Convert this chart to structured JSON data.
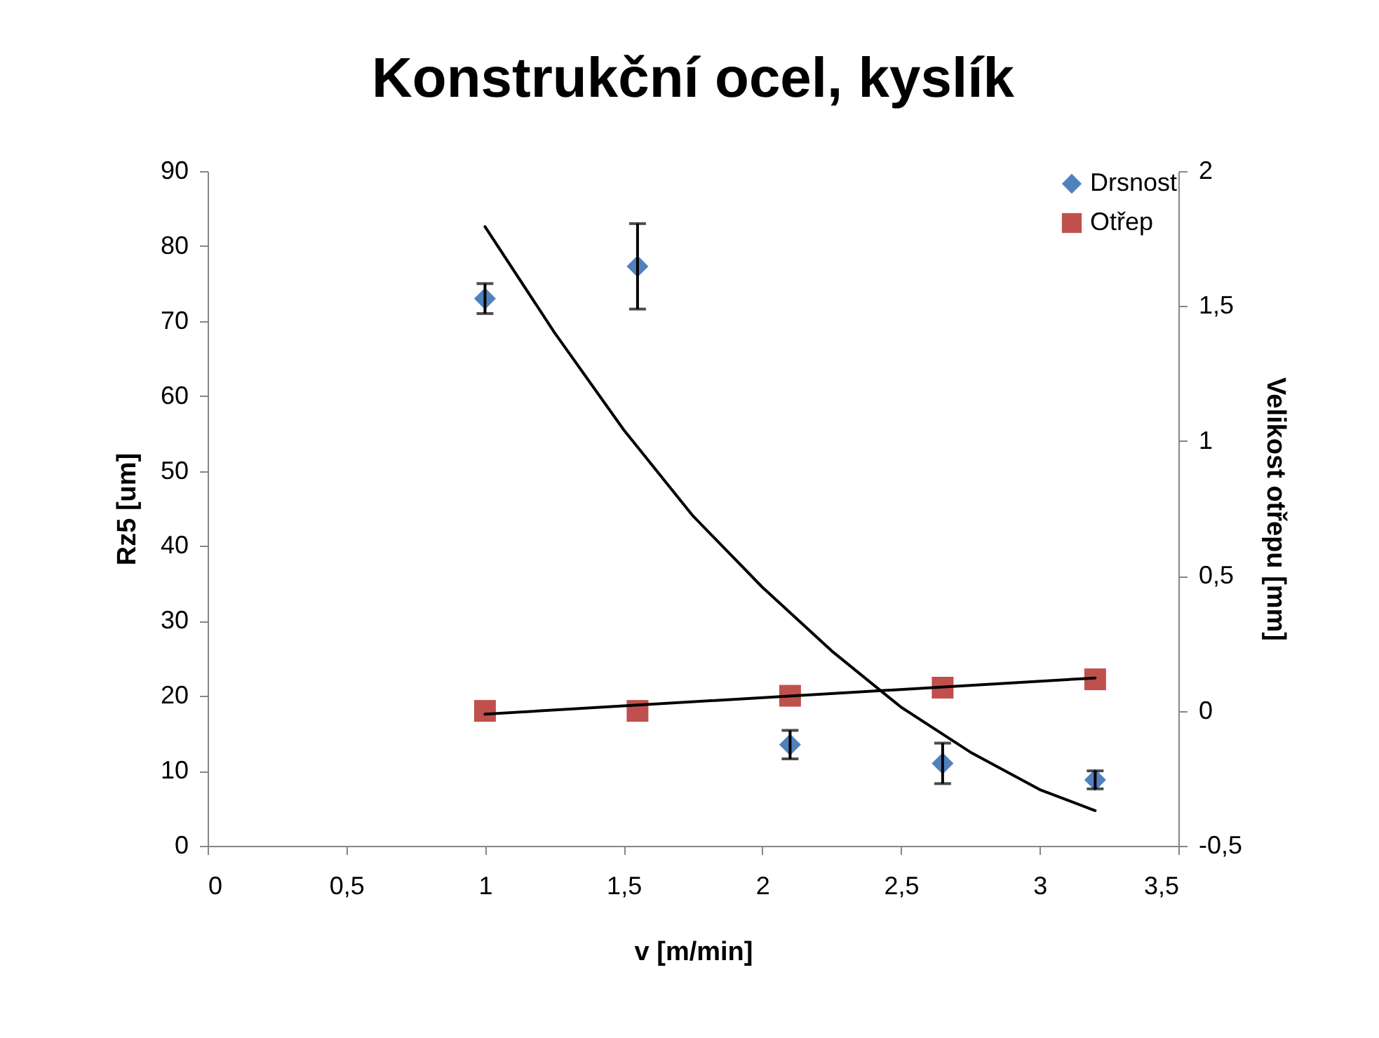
{
  "chart_data": {
    "type": "scatter",
    "title": "Konstrukční ocel, kyslík",
    "xlabel": "v [m/min]",
    "ylabel": "Rz5 [um]",
    "y2label": "Velikost otřepu [mm]",
    "xlim": [
      0,
      3.5
    ],
    "xticks": [
      0,
      {
        "value": 0.5,
        "label": "0,5"
      },
      1,
      {
        "value": 1.5,
        "label": "1,5"
      },
      2,
      {
        "value": 2.5,
        "label": "2,5"
      },
      3,
      {
        "value": 3.5,
        "label": "3,5"
      }
    ],
    "ylim": [
      0,
      90
    ],
    "yticks": [
      0,
      10,
      20,
      30,
      40,
      50,
      60,
      70,
      80,
      90
    ],
    "y2lim": [
      -0.5,
      2
    ],
    "y2ticks": [
      {
        "value": -0.5,
        "label": "-0,5"
      },
      0,
      {
        "value": 0.5,
        "label": "0,5"
      },
      1,
      {
        "value": 1.5,
        "label": "1,5"
      },
      2
    ],
    "grid": false,
    "legend": "top right",
    "series": [
      {
        "name": "Drsnost",
        "type": "scatter",
        "marker": "diamond",
        "color": "#4f81bd",
        "x": [
          1,
          1.55,
          2.1,
          2.65,
          3.2
        ],
        "values": [
          73,
          77.3,
          13.5,
          11,
          8.8
        ],
        "errors": [
          2,
          5.7,
          1.9,
          2.7,
          1.2
        ]
      },
      {
        "type": "line",
        "color": "#000000",
        "x": [
          1,
          1.25,
          1.5,
          1.75,
          2,
          2.25,
          2.5,
          2.75,
          3,
          3.2
        ],
        "values": [
          82.6,
          68.5,
          55.5,
          44,
          34.5,
          26,
          18.5,
          12.5,
          7.5,
          4.7
        ]
      },
      {
        "name": "Otřep",
        "type": "scatter",
        "marker": "square",
        "color": "#c0504d",
        "axis": "y2",
        "x": [
          1,
          1.55,
          2.1,
          2.65,
          3.2
        ],
        "values": [
          0,
          0,
          0.056,
          0.086,
          0.117
        ]
      },
      {
        "type": "line",
        "color": "#000000",
        "axis": "y2",
        "x": [
          1,
          3.2
        ],
        "values": [
          -0.012,
          0.122
        ]
      }
    ]
  }
}
